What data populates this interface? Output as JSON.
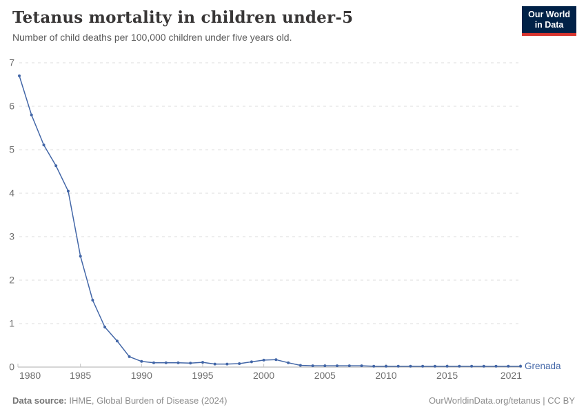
{
  "header": {
    "title": "Tetanus mortality in children under-5",
    "subtitle": "Number of child deaths per 100,000 children under five years old.",
    "logo_line1": "Our World",
    "logo_line2": "in Data"
  },
  "chart_data": {
    "type": "line",
    "title": "Tetanus mortality in children under-5",
    "xlabel": "",
    "ylabel": "",
    "xlim": [
      1980,
      2021
    ],
    "ylim": [
      0,
      7
    ],
    "x_ticks": [
      1980,
      1985,
      1990,
      1995,
      2000,
      2005,
      2010,
      2015,
      2021
    ],
    "y_ticks": [
      0,
      1,
      2,
      3,
      4,
      5,
      6,
      7
    ],
    "grid": "horizontal-dashed",
    "legend_position": "end-of-line-label",
    "series": [
      {
        "name": "Grenada",
        "x": [
          1980,
          1981,
          1982,
          1983,
          1984,
          1985,
          1986,
          1987,
          1988,
          1989,
          1990,
          1991,
          1992,
          1993,
          1994,
          1995,
          1996,
          1997,
          1998,
          1999,
          2000,
          2001,
          2002,
          2003,
          2004,
          2005,
          2006,
          2007,
          2008,
          2009,
          2010,
          2011,
          2012,
          2013,
          2014,
          2015,
          2016,
          2017,
          2018,
          2019,
          2020,
          2021
        ],
        "values": [
          6.7,
          5.8,
          5.11,
          4.63,
          4.05,
          2.55,
          1.54,
          0.92,
          0.6,
          0.24,
          0.13,
          0.1,
          0.1,
          0.1,
          0.09,
          0.11,
          0.07,
          0.07,
          0.08,
          0.12,
          0.16,
          0.17,
          0.1,
          0.04,
          0.03,
          0.03,
          0.03,
          0.03,
          0.03,
          0.02,
          0.02,
          0.02,
          0.02,
          0.02,
          0.02,
          0.02,
          0.02,
          0.02,
          0.02,
          0.02,
          0.02,
          0.02
        ]
      }
    ],
    "end_label": "Grenada"
  },
  "footer": {
    "source_label": "Data source:",
    "source_text": " IHME, Global Burden of Disease (2024)",
    "credit": "OurWorldinData.org/tetanus | CC BY"
  },
  "colors": {
    "line": "#4266a7",
    "title": "#383636",
    "subtitle": "#5a5a5a",
    "axis_label": "#6e6e6e",
    "gridline": "#dcdcdc",
    "axis_line": "#adadad",
    "tick": "#c4c4c4",
    "logo_bg": "#002147",
    "logo_accent": "#d8352f",
    "credit": "#8c8c8c"
  }
}
